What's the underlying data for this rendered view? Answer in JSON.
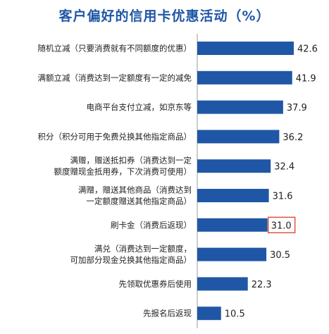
{
  "chart_data": {
    "type": "bar",
    "orientation": "horizontal",
    "title": "客户偏好的信用卡优惠活动（%）",
    "xlabel": "",
    "ylabel": "",
    "xlim": [
      0,
      45
    ],
    "grid": false,
    "legend": "none",
    "bar_color": "#1f57a6",
    "highlight_color": "#e03c31",
    "categories": [
      [
        "随机立减（只要消费就有不同额度的优惠）"
      ],
      [
        "满额立减（消费达到一定额度有一定的减免"
      ],
      [
        "电商平台支付立减，如京东等"
      ],
      [
        "积分（积分可用于免费兑换其他指定商品）"
      ],
      [
        "满赠，赠送抵扣券（消费达到一定",
        "额度赠现金抵用券，下次消费可使用）"
      ],
      [
        "满赠，赠送其他商品（消费达到",
        "一定额度赠送其他指定商品）"
      ],
      [
        "刷卡金（消费后返现）"
      ],
      [
        "满兑（消费达到一定额度，",
        "可加部分现金兑换其他指定商品）"
      ],
      [
        "先领取优惠券后使用"
      ],
      [
        "先报名后返现"
      ]
    ],
    "values": [
      42.6,
      41.9,
      37.9,
      36.2,
      32.4,
      31.6,
      31.0,
      30.5,
      22.3,
      10.5
    ],
    "value_labels": [
      "42.6",
      "41.9",
      "37.9",
      "36.2",
      "32.4",
      "31.6",
      "31.0",
      "30.5",
      "22.3",
      "10.5"
    ],
    "highlighted_index": 6
  }
}
